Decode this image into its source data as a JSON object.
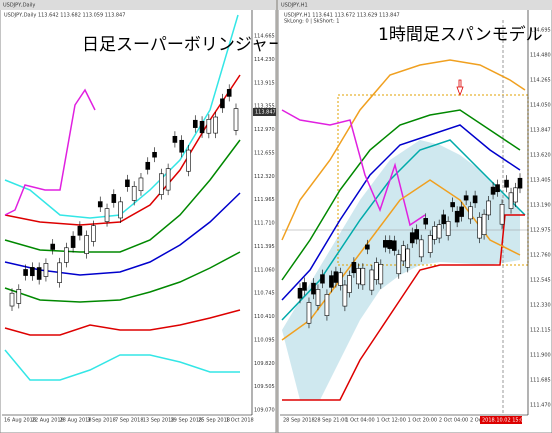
{
  "left_chart": {
    "title": "USDJPY,Daily",
    "header_info": "USDJPY,Daily 113.642 113.682 113.059 113.847",
    "overlay_label": "日足スーパーボリンジャー",
    "current_price": "113.847",
    "price_labels": [
      "114.665",
      "114.230",
      "113.915",
      "113.355",
      "112.970",
      "112.655",
      "112.320",
      "111.965",
      "111.710",
      "111.395",
      "111.060",
      "110.745",
      "110.410",
      "110.095",
      "109.820",
      "109.505",
      "109.070"
    ],
    "date_labels": [
      "16 Aug 2018",
      "22 Aug 2018",
      "28 Aug 2018",
      "3 Sep 2018",
      "7 Sep 2018",
      "13 Sep 2018",
      "19 Sep 2018",
      "25 Sep 2018",
      "1 Oct 2018"
    ]
  },
  "right_chart": {
    "title": "USDJPY,H1",
    "header_info": "USDJPY,H1 113.641 113.672 113.629 113.847",
    "sub_info": "SkLong: 0 | SkShort: 1",
    "overlay_label": "1時間足スパンモデル",
    "current_price": "113.847",
    "price_labels": [
      "114.695",
      "114.480",
      "114.265",
      "114.050",
      "113.847",
      "113.620",
      "113.405",
      "113.190",
      "112.975",
      "112.760",
      "112.545",
      "112.330",
      "112.115",
      "111.900",
      "111.685",
      "111.470"
    ],
    "date_labels": [
      "28 Sep 2018",
      "28 Sep 21:00",
      "1 Oct 04:00",
      "1 Oct 12:00",
      "1 Oct 20:00",
      "2 Oct 04:00",
      "2 Oct"
    ],
    "time_marker": "2018.10.02 15:00"
  }
}
